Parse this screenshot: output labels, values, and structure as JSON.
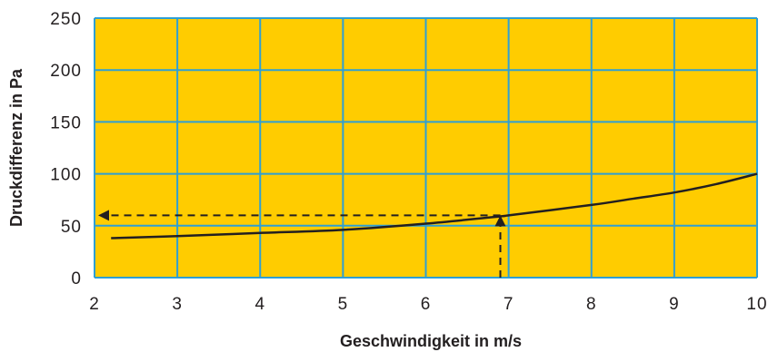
{
  "chart_data": {
    "type": "line",
    "title": "",
    "xlabel": "Geschwindigkeit in m/s",
    "ylabel": "Druckdifferenz in Pa",
    "xlim": [
      2,
      10
    ],
    "ylim": [
      0,
      250
    ],
    "x_ticks": [
      "2",
      "3",
      "4",
      "5",
      "6",
      "7",
      "8",
      "9",
      "10"
    ],
    "y_ticks": [
      "0",
      "50",
      "100",
      "150",
      "200",
      "250"
    ],
    "grid": true,
    "colors": {
      "plot_background": "#ffcc00",
      "grid": "#2e9fd4",
      "line": "#231f20"
    },
    "series": [
      {
        "x": [
          2.2,
          3,
          4,
          5,
          6,
          6.9,
          7,
          8,
          8.5,
          9,
          9.5,
          10
        ],
        "y": [
          38,
          40,
          43,
          46,
          52,
          59,
          60,
          70,
          76,
          82,
          90,
          100
        ]
      }
    ],
    "annotation": {
      "x": 6.9,
      "y": 60,
      "style": "dashed-arrows"
    }
  }
}
